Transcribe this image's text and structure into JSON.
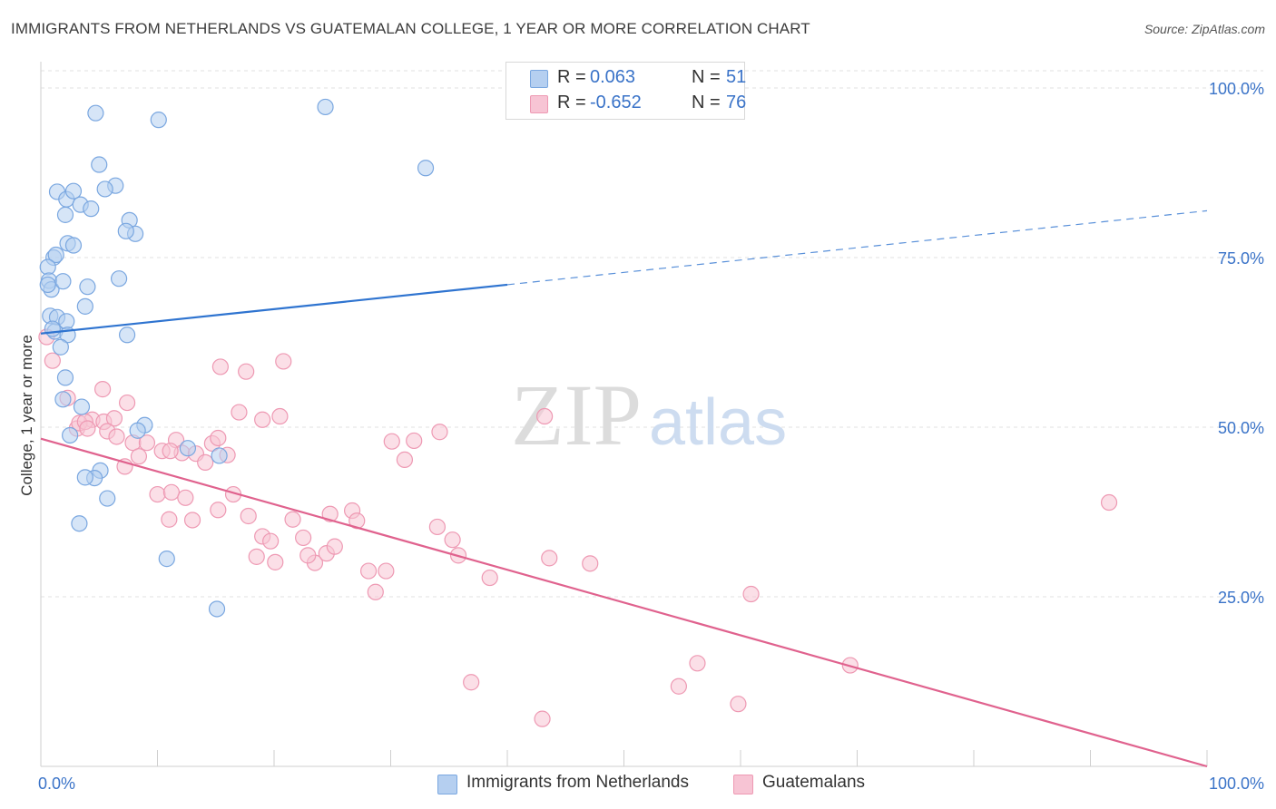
{
  "title": "IMMIGRANTS FROM NETHERLANDS VS GUATEMALAN COLLEGE, 1 YEAR OR MORE CORRELATION CHART",
  "source": "Source: ZipAtlas.com",
  "watermark": {
    "zip": "ZIP",
    "atlas": "atlas"
  },
  "legend": {
    "r_label": "R =",
    "n_label": "N =",
    "series": [
      {
        "r": "0.063",
        "n": "51"
      },
      {
        "r": "-0.652",
        "n": "76"
      }
    ]
  },
  "bottom_legend": [
    "Immigrants from Netherlands",
    "Guatemalans"
  ],
  "colors": {
    "blue_fill": "#b5cff0",
    "blue_stroke": "#7aa7e0",
    "blue_line": "#2f74d0",
    "pink_fill": "#f7c4d4",
    "pink_stroke": "#ee99b3",
    "pink_line": "#e0628e",
    "axis_label": "#3a73c8",
    "grid": "#e2e2e2"
  },
  "chart_data": {
    "type": "scatter",
    "title": "IMMIGRANTS FROM NETHERLANDS VS GUATEMALAN COLLEGE, 1 YEAR OR MORE CORRELATION CHART",
    "xlabel": "",
    "ylabel": "College, 1 year or more",
    "xlim": [
      0,
      100
    ],
    "ylim": [
      0,
      100
    ],
    "x_tick_labels": [
      "0.0%",
      "100.0%"
    ],
    "y_tick_values": [
      25,
      50,
      75,
      100
    ],
    "y_tick_labels": [
      "25.0%",
      "50.0%",
      "75.0%",
      "100.0%"
    ],
    "series": [
      {
        "name": "Immigrants from Netherlands",
        "r": 0.063,
        "n": 51,
        "points": [
          [
            4.7,
            96.3
          ],
          [
            10.1,
            95.3
          ],
          [
            24.4,
            97.2
          ],
          [
            5.0,
            88.7
          ],
          [
            6.4,
            85.6
          ],
          [
            33.0,
            88.2
          ],
          [
            1.4,
            84.7
          ],
          [
            2.2,
            83.6
          ],
          [
            2.8,
            84.8
          ],
          [
            3.4,
            82.8
          ],
          [
            5.5,
            85.1
          ],
          [
            4.3,
            82.2
          ],
          [
            2.1,
            81.3
          ],
          [
            7.6,
            80.5
          ],
          [
            8.1,
            78.5
          ],
          [
            7.3,
            78.9
          ],
          [
            2.3,
            77.1
          ],
          [
            2.8,
            76.8
          ],
          [
            1.1,
            75.0
          ],
          [
            1.3,
            75.4
          ],
          [
            0.6,
            73.6
          ],
          [
            0.7,
            71.6
          ],
          [
            0.9,
            70.3
          ],
          [
            0.6,
            71.0
          ],
          [
            1.9,
            71.5
          ],
          [
            4.0,
            70.7
          ],
          [
            6.7,
            71.9
          ],
          [
            3.8,
            67.8
          ],
          [
            0.8,
            66.4
          ],
          [
            1.4,
            66.2
          ],
          [
            2.2,
            65.6
          ],
          [
            1.2,
            64.1
          ],
          [
            2.3,
            63.6
          ],
          [
            7.4,
            63.6
          ],
          [
            1.7,
            61.8
          ],
          [
            2.1,
            57.3
          ],
          [
            1.9,
            54.1
          ],
          [
            3.5,
            53.0
          ],
          [
            8.9,
            50.3
          ],
          [
            2.5,
            48.8
          ],
          [
            5.1,
            43.6
          ],
          [
            4.6,
            42.5
          ],
          [
            3.8,
            42.6
          ],
          [
            5.7,
            39.5
          ],
          [
            3.3,
            35.8
          ],
          [
            10.8,
            30.6
          ],
          [
            15.1,
            23.2
          ],
          [
            12.6,
            46.9
          ],
          [
            15.3,
            45.8
          ],
          [
            8.3,
            49.5
          ],
          [
            1.0,
            64.5
          ]
        ],
        "trend": {
          "x0": 0,
          "y0": 63.8,
          "x1": 40,
          "y1": 71.0,
          "dashed_to_x": 100,
          "dashed_to_y": 81.9
        }
      },
      {
        "name": "Guatemalans",
        "r": -0.652,
        "n": 76,
        "points": [
          [
            0.5,
            63.3
          ],
          [
            1.0,
            59.8
          ],
          [
            2.3,
            54.3
          ],
          [
            3.1,
            49.8
          ],
          [
            4.4,
            51.1
          ],
          [
            5.3,
            55.6
          ],
          [
            7.4,
            53.6
          ],
          [
            3.3,
            50.6
          ],
          [
            3.8,
            50.8
          ],
          [
            5.4,
            50.8
          ],
          [
            6.3,
            51.3
          ],
          [
            4.0,
            49.8
          ],
          [
            5.7,
            49.4
          ],
          [
            6.5,
            48.6
          ],
          [
            7.9,
            47.7
          ],
          [
            9.1,
            47.7
          ],
          [
            10.4,
            46.5
          ],
          [
            11.6,
            48.1
          ],
          [
            12.1,
            46.2
          ],
          [
            13.3,
            46.1
          ],
          [
            14.1,
            44.8
          ],
          [
            14.7,
            47.6
          ],
          [
            15.2,
            48.4
          ],
          [
            16.0,
            45.9
          ],
          [
            17.0,
            52.2
          ],
          [
            11.1,
            46.5
          ],
          [
            8.4,
            45.7
          ],
          [
            7.2,
            44.2
          ],
          [
            10.0,
            40.1
          ],
          [
            11.2,
            40.4
          ],
          [
            12.4,
            39.6
          ],
          [
            11.0,
            36.4
          ],
          [
            13.0,
            36.3
          ],
          [
            15.2,
            37.8
          ],
          [
            16.5,
            40.1
          ],
          [
            17.8,
            36.9
          ],
          [
            19.0,
            33.9
          ],
          [
            18.5,
            30.9
          ],
          [
            19.7,
            33.2
          ],
          [
            20.1,
            30.1
          ],
          [
            21.6,
            36.4
          ],
          [
            22.5,
            33.7
          ],
          [
            23.5,
            30.0
          ],
          [
            22.9,
            31.1
          ],
          [
            24.5,
            31.4
          ],
          [
            25.2,
            32.4
          ],
          [
            24.8,
            37.2
          ],
          [
            26.7,
            37.7
          ],
          [
            27.1,
            36.2
          ],
          [
            28.1,
            28.8
          ],
          [
            28.7,
            25.7
          ],
          [
            29.6,
            28.8
          ],
          [
            30.1,
            47.9
          ],
          [
            31.2,
            45.2
          ],
          [
            32.0,
            48.0
          ],
          [
            34.0,
            35.3
          ],
          [
            35.3,
            33.4
          ],
          [
            35.8,
            31.1
          ],
          [
            38.5,
            27.8
          ],
          [
            43.2,
            51.6
          ],
          [
            20.8,
            59.7
          ],
          [
            17.6,
            58.2
          ],
          [
            15.4,
            58.9
          ],
          [
            19.0,
            51.1
          ],
          [
            20.5,
            51.6
          ],
          [
            34.2,
            49.3
          ],
          [
            43.0,
            7.0
          ],
          [
            36.9,
            12.4
          ],
          [
            47.1,
            29.9
          ],
          [
            54.7,
            11.8
          ],
          [
            59.8,
            9.2
          ],
          [
            56.3,
            15.2
          ],
          [
            69.4,
            14.9
          ],
          [
            60.9,
            25.4
          ],
          [
            91.6,
            38.9
          ],
          [
            43.6,
            30.7
          ]
        ],
        "trend": {
          "x0": 0,
          "y0": 48.3,
          "x1": 100,
          "y1": 0.0
        }
      }
    ]
  }
}
